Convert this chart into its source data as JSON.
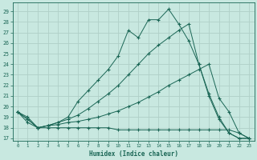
{
  "xlabel": "Humidex (Indice chaleur)",
  "background_color": "#c8e8e0",
  "grid_color": "#b0d0c8",
  "line_color": "#1a6655",
  "xlim": [
    -0.5,
    23.5
  ],
  "ylim": [
    16.8,
    29.8
  ],
  "yticks": [
    17,
    18,
    19,
    20,
    21,
    22,
    23,
    24,
    25,
    26,
    27,
    28,
    29
  ],
  "xticks": [
    0,
    1,
    2,
    3,
    4,
    5,
    6,
    7,
    8,
    9,
    10,
    11,
    12,
    13,
    14,
    15,
    16,
    17,
    18,
    19,
    20,
    21,
    22,
    23
  ],
  "lines": [
    {
      "x": [
        0,
        1,
        2,
        3,
        4,
        5,
        6,
        7,
        8,
        9,
        10,
        11,
        12,
        13,
        14,
        15,
        16,
        17,
        18,
        19,
        20,
        21,
        22,
        23
      ],
      "y": [
        19.5,
        19.0,
        18.0,
        18.2,
        18.5,
        19.0,
        20.5,
        21.5,
        22.5,
        23.5,
        24.8,
        27.2,
        26.5,
        28.2,
        28.2,
        29.2,
        27.8,
        26.2,
        24.0,
        21.0,
        18.8,
        17.5,
        17.0,
        17.0
      ]
    },
    {
      "x": [
        0,
        1,
        2,
        3,
        4,
        5,
        6,
        7,
        8,
        9,
        10,
        11,
        12,
        13,
        14,
        15,
        16,
        17,
        18,
        19,
        20,
        21,
        22,
        23
      ],
      "y": [
        19.5,
        18.8,
        18.0,
        18.2,
        18.5,
        18.8,
        19.2,
        19.8,
        20.5,
        21.2,
        22.0,
        23.0,
        24.0,
        25.0,
        25.8,
        26.5,
        27.2,
        27.8,
        24.0,
        21.2,
        19.0,
        17.5,
        17.0,
        17.0
      ]
    },
    {
      "x": [
        0,
        1,
        2,
        3,
        4,
        5,
        6,
        7,
        8,
        9,
        10,
        11,
        12,
        13,
        14,
        15,
        16,
        17,
        18,
        19,
        20,
        21,
        22,
        23
      ],
      "y": [
        19.5,
        18.8,
        18.0,
        18.2,
        18.3,
        18.5,
        18.6,
        18.8,
        19.0,
        19.3,
        19.6,
        20.0,
        20.4,
        20.9,
        21.4,
        22.0,
        22.5,
        23.0,
        23.5,
        24.0,
        20.8,
        19.5,
        17.5,
        17.0
      ]
    },
    {
      "x": [
        0,
        1,
        2,
        3,
        4,
        5,
        6,
        7,
        8,
        9,
        10,
        11,
        12,
        13,
        14,
        15,
        16,
        17,
        18,
        19,
        20,
        21,
        22,
        23
      ],
      "y": [
        19.5,
        18.5,
        18.0,
        18.0,
        18.0,
        18.0,
        18.0,
        18.0,
        18.0,
        18.0,
        17.8,
        17.8,
        17.8,
        17.8,
        17.8,
        17.8,
        17.8,
        17.8,
        17.8,
        17.8,
        17.8,
        17.8,
        17.5,
        17.0
      ]
    }
  ]
}
